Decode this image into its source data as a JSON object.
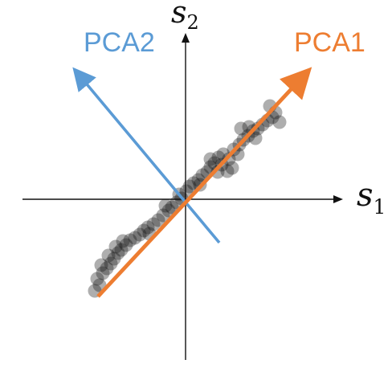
{
  "axes": {
    "x_label_main": "s",
    "x_label_sub": "1",
    "y_label_main": "s",
    "y_label_sub": "2",
    "color": "#111111"
  },
  "pca1": {
    "label": "PCA1",
    "color": "#ED7D31"
  },
  "pca2": {
    "label": "PCA2",
    "color": "#5B9BD5"
  },
  "points_color": "#111111"
}
